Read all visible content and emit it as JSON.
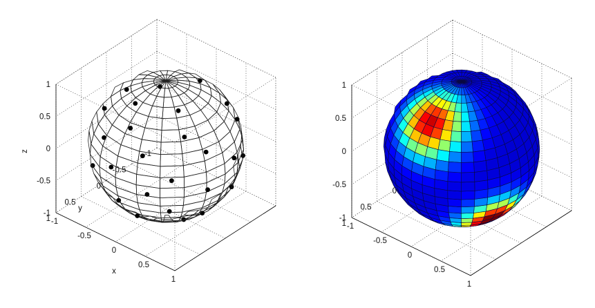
{
  "chart_data": [
    {
      "type": "scatter3d",
      "title": "",
      "surface": "unit sphere wireframe",
      "xlabel": "x",
      "ylabel": "y",
      "zlabel": "z",
      "xlim": [
        -1,
        1
      ],
      "ylim": [
        -1,
        1
      ],
      "zlim": [
        -1,
        1
      ],
      "xticks": [
        -1,
        -0.5,
        0,
        0.5,
        1
      ],
      "yticks": [
        -1,
        -0.5,
        0,
        0.5,
        1
      ],
      "zticks": [
        -1,
        -0.5,
        0,
        0.5,
        1
      ],
      "xtick_labels": [
        "-1",
        "-0.5",
        "0",
        "0.5",
        "1"
      ],
      "ytick_labels": [
        "-1",
        "-0.5",
        "0",
        "0.5",
        "1"
      ],
      "ztick_labels": [
        "-1",
        "-0.5",
        "0",
        "0.5",
        "1"
      ],
      "grid": true,
      "marker_color": "#000000",
      "points": [
        [
          0.02,
          0.14,
          0.99
        ],
        [
          0.43,
          0.26,
          0.86
        ],
        [
          -0.38,
          0.33,
          0.86
        ],
        [
          0.2,
          -0.44,
          0.87
        ],
        [
          -0.09,
          0.5,
          0.86
        ],
        [
          0.66,
          0.41,
          0.63
        ],
        [
          0.56,
          -0.55,
          0.62
        ],
        [
          -0.55,
          0.57,
          0.61
        ],
        [
          -0.68,
          -0.37,
          0.63
        ],
        [
          0.04,
          0.75,
          0.66
        ],
        [
          -0.1,
          -0.78,
          0.62
        ],
        [
          0.88,
          0.24,
          0.41
        ],
        [
          0.33,
          0.85,
          0.41
        ],
        [
          -0.31,
          0.86,
          0.41
        ],
        [
          -0.87,
          0.27,
          0.41
        ],
        [
          -0.7,
          -0.58,
          0.41
        ],
        [
          0.69,
          -0.6,
          0.41
        ],
        [
          0.18,
          -0.9,
          0.39
        ],
        [
          0.97,
          -0.21,
          0.13
        ],
        [
          0.7,
          0.71,
          0.12
        ],
        [
          -0.08,
          0.99,
          0.12
        ],
        [
          -0.82,
          0.56,
          0.12
        ],
        [
          -0.99,
          -0.05,
          0.12
        ],
        [
          -0.4,
          -0.91,
          0.1
        ],
        [
          0.36,
          -0.93,
          0.1
        ],
        [
          0.95,
          0.29,
          -0.12
        ],
        [
          0.44,
          0.89,
          -0.12
        ],
        [
          -0.51,
          0.85,
          -0.12
        ],
        [
          -0.93,
          -0.34,
          -0.12
        ],
        [
          -0.6,
          -0.79,
          -0.12
        ],
        [
          0.06,
          -0.99,
          -0.12
        ],
        [
          0.78,
          -0.61,
          -0.12
        ],
        [
          0.85,
          -0.3,
          -0.42
        ],
        [
          0.62,
          0.66,
          -0.42
        ],
        [
          -0.03,
          0.9,
          -0.42
        ],
        [
          -0.72,
          0.55,
          -0.42
        ],
        [
          -0.85,
          0.31,
          -0.41
        ],
        [
          -0.75,
          -0.51,
          -0.42
        ],
        [
          -0.14,
          -0.89,
          -0.42
        ],
        [
          0.41,
          -0.8,
          -0.43
        ],
        [
          0.74,
          0.15,
          -0.65
        ],
        [
          0.14,
          0.73,
          -0.67
        ],
        [
          -0.52,
          0.55,
          -0.65
        ],
        [
          -0.67,
          -0.33,
          -0.66
        ],
        [
          -0.17,
          -0.75,
          -0.64
        ],
        [
          0.49,
          -0.56,
          -0.67
        ],
        [
          0.42,
          0.14,
          -0.9
        ],
        [
          -0.19,
          0.36,
          -0.91
        ],
        [
          -0.3,
          -0.31,
          -0.9
        ],
        [
          0.25,
          -0.37,
          -0.89
        ],
        [
          0.0,
          0.05,
          -1.0
        ],
        [
          -0.45,
          0.05,
          -0.89
        ]
      ]
    },
    {
      "type": "surface3d",
      "title": "",
      "surface": "unit sphere colored by value",
      "xlabel": "",
      "ylabel": "",
      "zlabel": "",
      "xlim": [
        -1,
        1
      ],
      "ylim": [
        -1,
        1
      ],
      "zlim": [
        -1,
        1
      ],
      "xticks": [
        -1,
        -0.5,
        0,
        0.5,
        1
      ],
      "yticks": [
        -1,
        -0.5,
        0,
        0.5,
        1
      ],
      "zticks": [
        -1,
        -0.5,
        0,
        0.5,
        1
      ],
      "xtick_labels": [
        "-1",
        "-0.5",
        "0",
        "0.5",
        "1"
      ],
      "ytick_labels": [
        "-1",
        "-0.5",
        "0",
        "0.5",
        "1"
      ],
      "ztick_labels": [
        "-1",
        "-0.5",
        "0",
        "0.5",
        "1"
      ],
      "grid": true,
      "colormap": "jet",
      "hotspots": [
        {
          "theta_deg": 128,
          "phi_deg": 20,
          "sigma_deg": 16,
          "peak": 1.0
        },
        {
          "theta_deg": 43,
          "phi_deg": 86,
          "sigma_deg": 18,
          "peak": 0.85
        },
        {
          "theta_deg": 156,
          "phi_deg": -44,
          "sigma_deg": 13,
          "peak": 0.7
        },
        {
          "theta_deg": 160,
          "phi_deg": 30,
          "sigma_deg": 13,
          "peak": 0.6
        }
      ]
    }
  ]
}
